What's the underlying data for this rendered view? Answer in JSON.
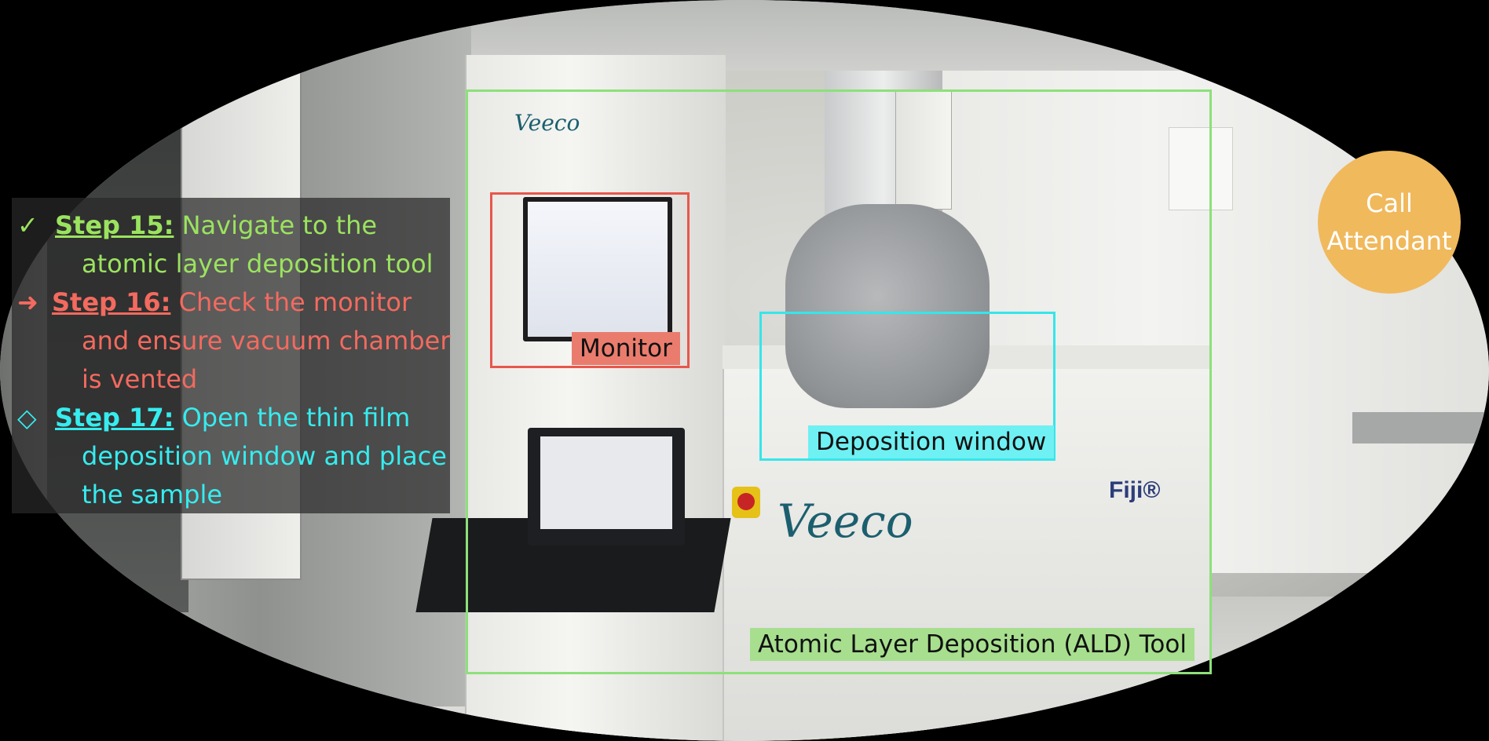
{
  "steps": {
    "step15": {
      "marker": "✓",
      "head": "Step 15:",
      "line1": "Navigate to the",
      "line2": "atomic layer deposition tool",
      "color": "#9be35f"
    },
    "step16": {
      "marker": "➜",
      "head": "Step 16:",
      "line1": "Check the monitor",
      "line2": "and ensure vacuum chamber",
      "line3": "is vented",
      "color": "#f36a5f"
    },
    "step17": {
      "marker": "◇",
      "head": "Step 17:",
      "line1": "Open the thin film",
      "line2": "deposition window and place",
      "line3": "the sample",
      "color": "#36ecef"
    }
  },
  "annotations": {
    "ald_tool": "Atomic Layer Deposition (ALD) Tool",
    "monitor": "Monitor",
    "deposition_window": "Deposition window"
  },
  "call_attendant": {
    "line1": "Call",
    "line2": "Attendant",
    "color": "#f0b95c"
  },
  "equipment_labels": {
    "brand_small": "Veeco",
    "brand_large": "Veeco",
    "model": "Fiji®"
  }
}
